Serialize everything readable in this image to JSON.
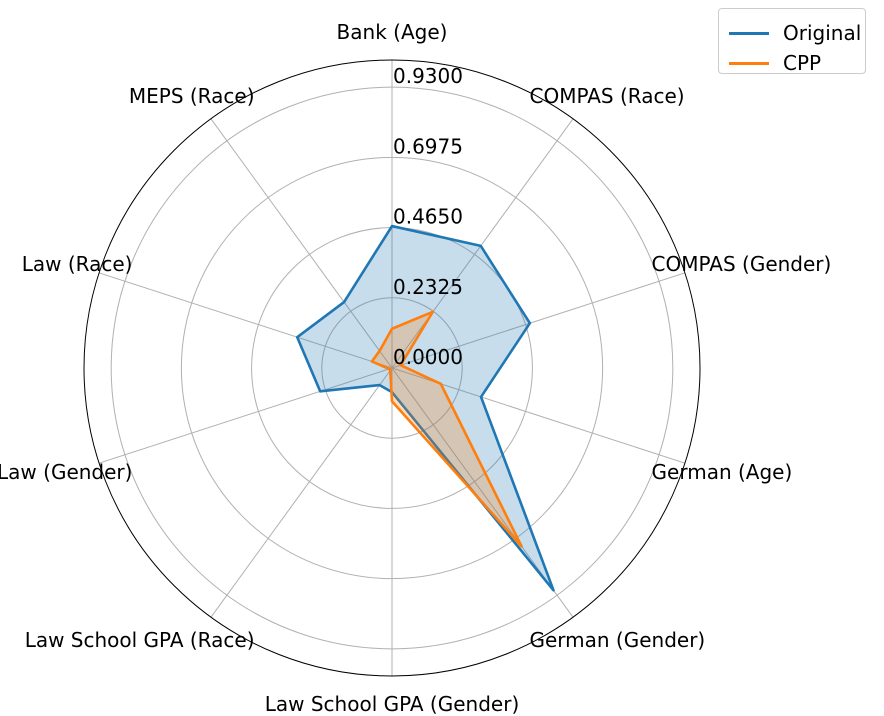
{
  "chart_data": {
    "type": "radar",
    "categories": [
      "Bank (Age)",
      "COMPAS (Race)",
      "COMPAS (Gender)",
      "German (Age)",
      "German (Gender)",
      "Law School GPA (Gender)",
      "Law School GPA (Race)",
      "Law (Gender)",
      "Law (Race)",
      "MEPS (Race)"
    ],
    "r_ticks": [
      "0.0000",
      "0.2325",
      "0.4650",
      "0.6975",
      "0.9300"
    ],
    "r_max": 0.93,
    "r_outer": 1.02,
    "series": [
      {
        "name": "Original",
        "color": "#1f77b4",
        "values": [
          0.47,
          0.5,
          0.48,
          0.31,
          0.91,
          0.08,
          0.07,
          0.25,
          0.33,
          0.27
        ]
      },
      {
        "name": "CPP",
        "color": "#ff7f0e",
        "values": [
          0.13,
          0.23,
          0.03,
          0.17,
          0.73,
          0.11,
          0.01,
          0.01,
          0.07,
          0.07
        ]
      }
    ],
    "grid": true,
    "legend": "top-right"
  }
}
